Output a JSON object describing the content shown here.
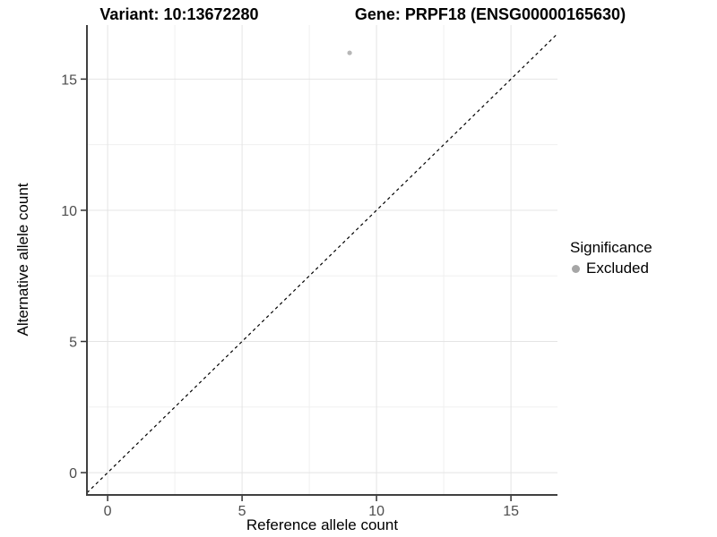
{
  "titles": {
    "variant": "Variant: 10:13672280",
    "gene": "Gene: PRPF18 (ENSG00000165630)"
  },
  "legend": {
    "title": "Significance",
    "items": [
      {
        "label": "Excluded",
        "color": "#a6a6a6"
      }
    ]
  },
  "chart_data": {
    "type": "scatter",
    "title_left": "Variant: 10:13672280",
    "title_right": "Gene: PRPF18 (ENSG00000165630)",
    "xlabel": "Reference allele count",
    "ylabel": "Alternative allele count",
    "xlim": [
      -0.77,
      16.73
    ],
    "ylim": [
      -0.85,
      17.06
    ],
    "x_ticks": [
      0,
      5,
      10,
      15
    ],
    "y_ticks": [
      0,
      5,
      10,
      15
    ],
    "x_minor_ticks": [
      2.5,
      7.5,
      12.5
    ],
    "y_minor_ticks": [
      2.5,
      7.5,
      12.5
    ],
    "grid": true,
    "legend_position": "right",
    "series": [
      {
        "name": "Excluded",
        "color": "#b7b7b7",
        "points": [
          {
            "x": 9,
            "y": 16
          }
        ]
      }
    ],
    "reference_line": {
      "kind": "identity",
      "style": "dashed",
      "color": "#000000"
    },
    "colors": {
      "grid_major": "#e4e4e4",
      "grid_minor": "#f0f0f0",
      "axis_line": "#404040",
      "tick_mark": "#333333",
      "tick_text": "#4d4d4d",
      "background": "#ffffff"
    }
  }
}
